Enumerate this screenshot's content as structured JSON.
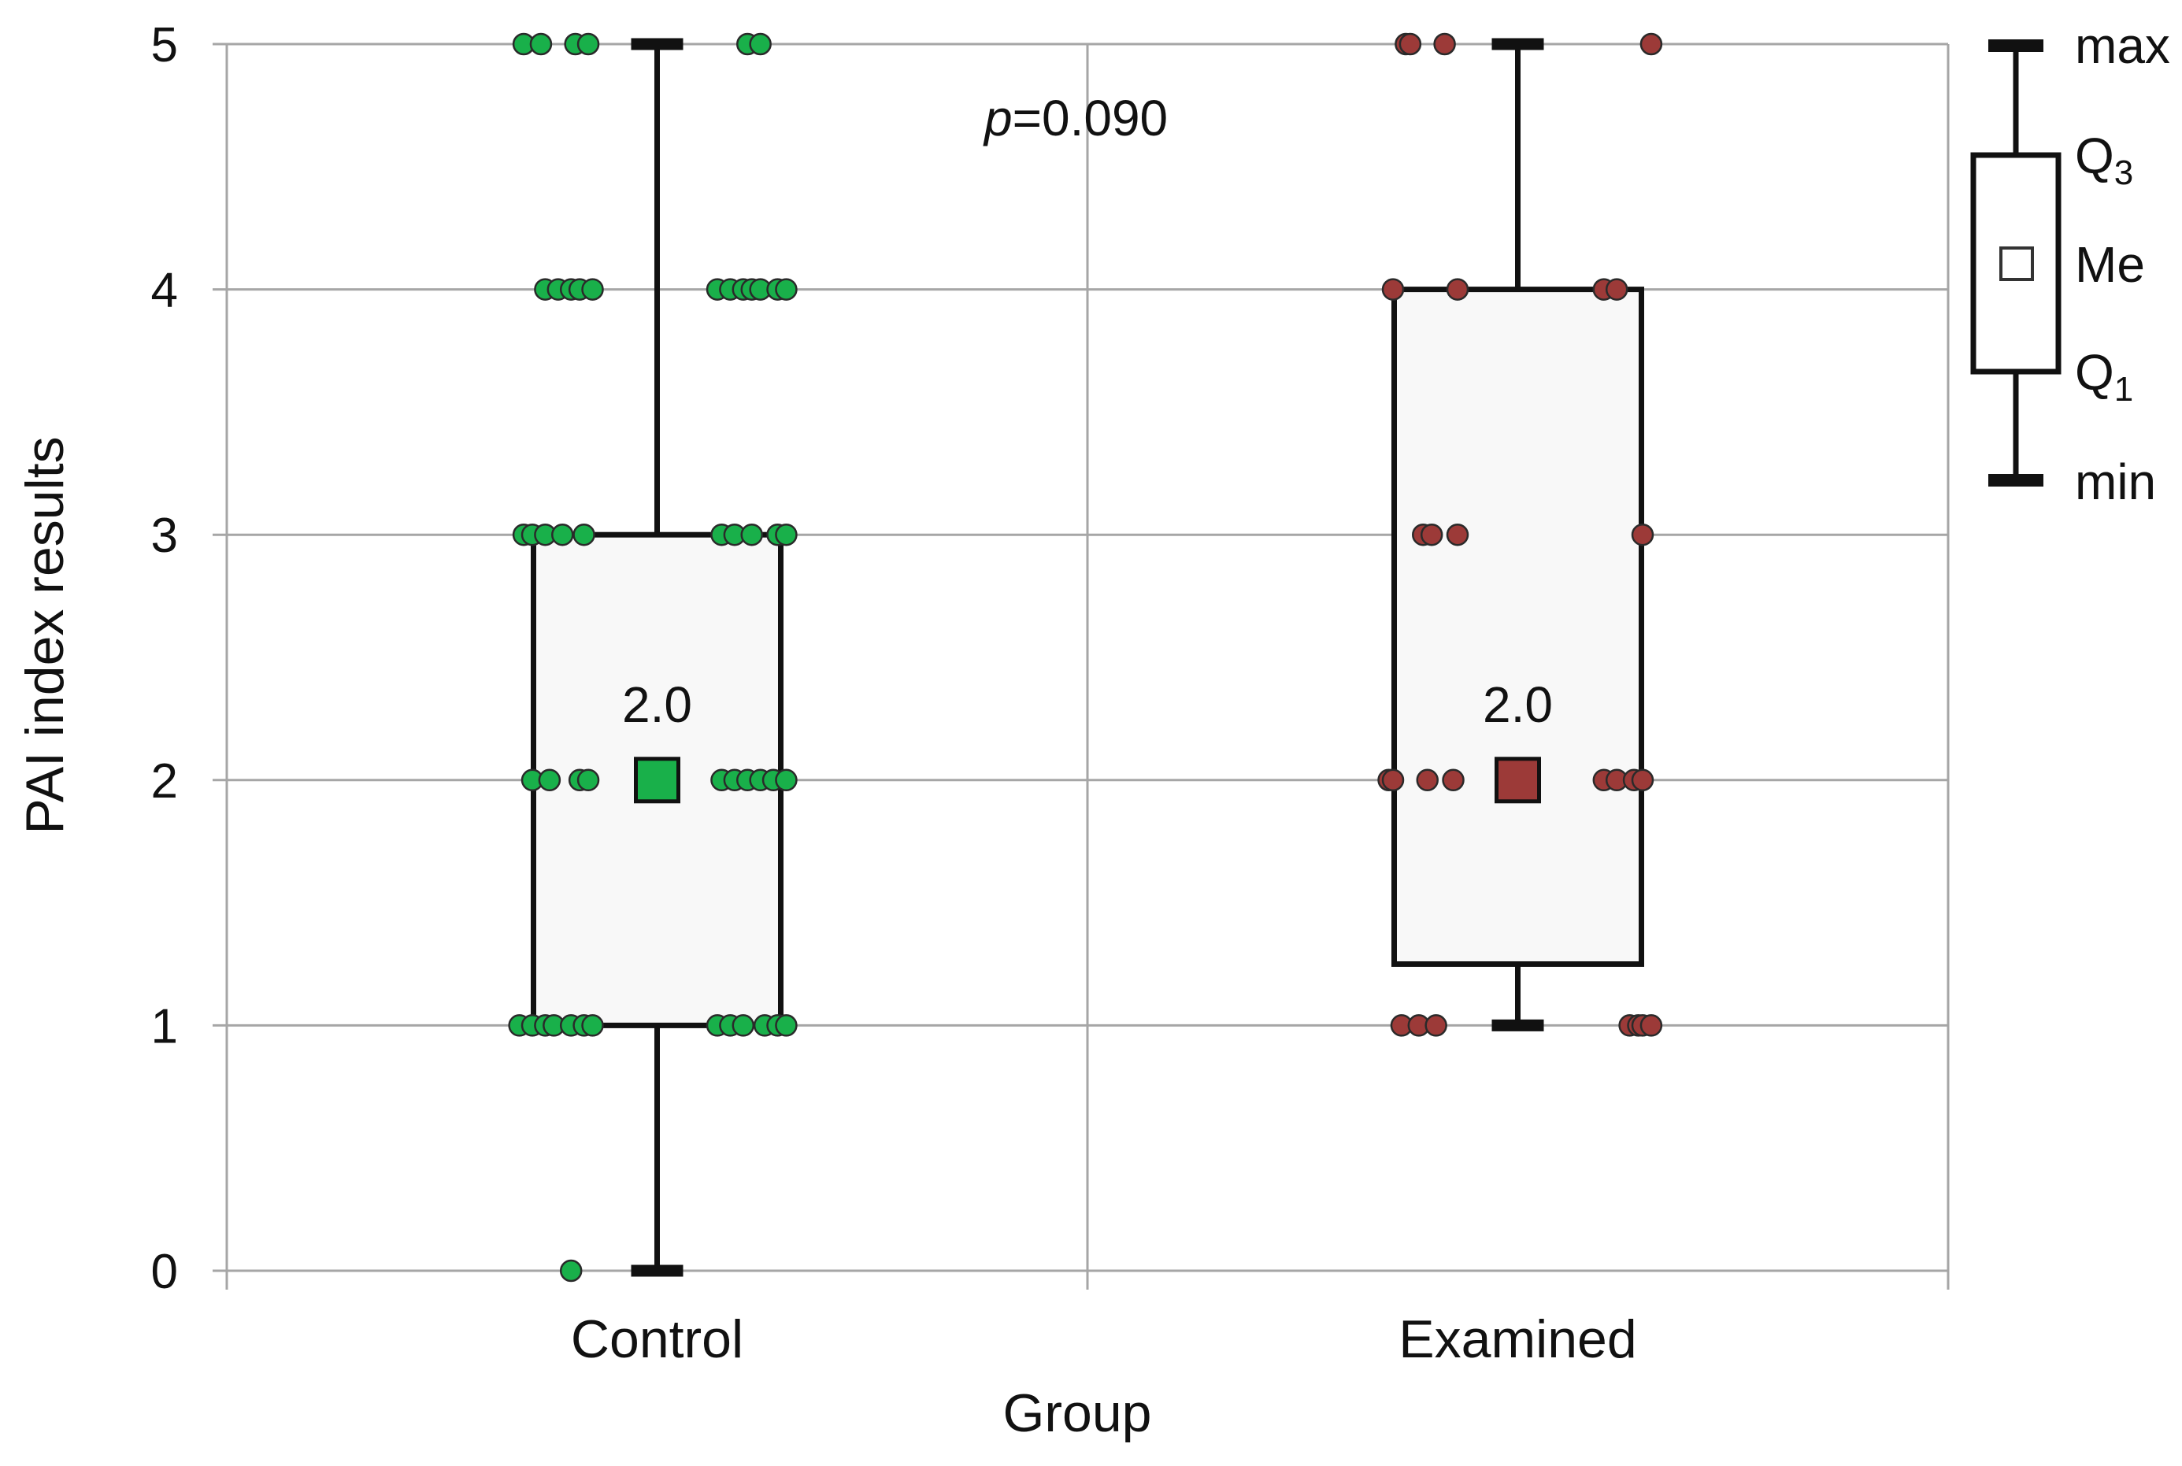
{
  "chart_data": {
    "type": "box",
    "xlabel": "Group",
    "ylabel": "PAI index results",
    "ylim": [
      0,
      5
    ],
    "yticks": [
      0,
      1,
      2,
      3,
      4,
      5
    ],
    "grid": true,
    "categories": [
      "Control",
      "Examined"
    ],
    "annotation": {
      "prefix": "p",
      "text": "=0.090"
    },
    "groups": [
      {
        "name": "Control",
        "color": "#19b04a",
        "min": 0,
        "q1": 1,
        "median": 2,
        "q3": 3,
        "max": 5,
        "median_label": "2.0",
        "points": [
          {
            "y": 5,
            "dx": [
              -0.155,
              -0.135,
              -0.095,
              -0.08,
              0.105,
              0.12
            ]
          },
          {
            "y": 4,
            "dx": [
              -0.13,
              -0.115,
              -0.1,
              -0.09,
              -0.075,
              0.07,
              0.085,
              0.1,
              0.11,
              0.12,
              0.14,
              0.15
            ]
          },
          {
            "y": 3,
            "dx": [
              -0.155,
              -0.145,
              -0.13,
              -0.11,
              -0.085,
              0.075,
              0.09,
              0.11,
              0.14,
              0.15
            ]
          },
          {
            "y": 2,
            "dx": [
              -0.145,
              -0.125,
              -0.09,
              -0.08,
              0.075,
              0.09,
              0.105,
              0.12,
              0.135,
              0.15
            ]
          },
          {
            "y": 1,
            "dx": [
              -0.16,
              -0.145,
              -0.13,
              -0.12,
              -0.1,
              -0.085,
              -0.075,
              0.07,
              0.085,
              0.1,
              0.125,
              0.14,
              0.15
            ]
          },
          {
            "y": 0,
            "dx": [
              -0.1
            ]
          }
        ]
      },
      {
        "name": "Examined",
        "color": "#9c3a38",
        "min": 1,
        "q1": 1.25,
        "median": 2,
        "q3": 4,
        "max": 5,
        "median_label": "2.0",
        "points": [
          {
            "y": 5,
            "dx": [
              -0.13,
              -0.125,
              -0.085,
              0.155
            ]
          },
          {
            "y": 4,
            "dx": [
              -0.145,
              -0.07,
              0.1,
              0.115
            ]
          },
          {
            "y": 3,
            "dx": [
              -0.11,
              -0.1,
              -0.07,
              0.145
            ]
          },
          {
            "y": 2,
            "dx": [
              -0.15,
              -0.145,
              -0.105,
              -0.075,
              0.1,
              0.115,
              0.135,
              0.145
            ]
          },
          {
            "y": 1,
            "dx": [
              -0.135,
              -0.115,
              -0.095,
              0.13,
              0.14,
              0.145,
              0.155
            ]
          }
        ]
      }
    ]
  },
  "legend": {
    "max_label": "max",
    "q3_label": "Q",
    "q3_sub": "3",
    "me_label": "Me",
    "q1_label": "Q",
    "q1_sub": "1",
    "min_label": "min"
  }
}
